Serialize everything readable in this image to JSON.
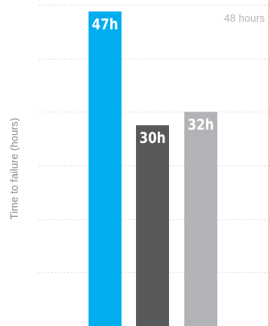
{
  "chart_data": {
    "type": "bar",
    "ylabel": "Time to failure (hours)",
    "ylim": [
      0,
      48
    ],
    "grid": true,
    "reference_label": "48 hours",
    "categories": [
      "",
      "",
      ""
    ],
    "values": [
      47,
      30,
      32
    ],
    "data_labels": [
      "47h",
      "30h",
      "32h"
    ],
    "colors": [
      "#00aeef",
      "#58595b",
      "#b1b3b6"
    ]
  }
}
